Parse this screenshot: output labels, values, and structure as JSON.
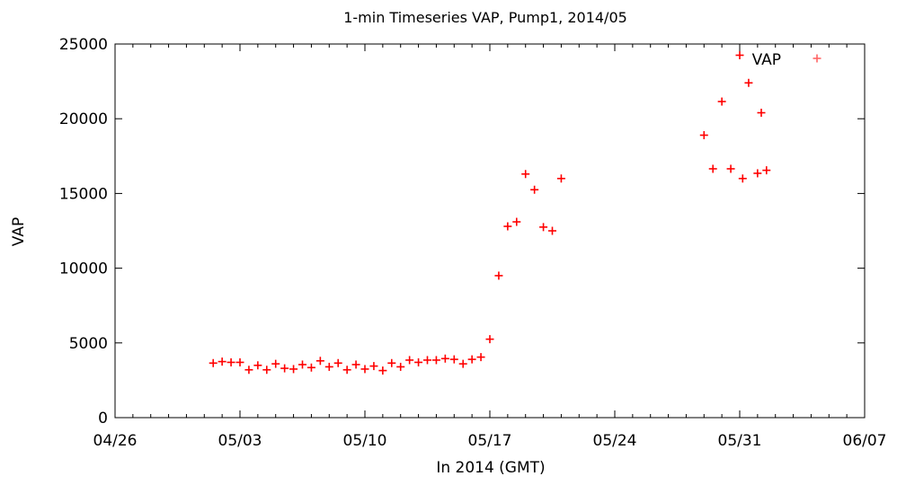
{
  "chart_data": {
    "type": "scatter",
    "title": "1-min Timeseries VAP, Pump1, 2014/05",
    "xlabel": "In 2014 (GMT)",
    "ylabel": "VAP",
    "xlim": [
      "2014-04-26",
      "2014-06-07"
    ],
    "ylim": [
      0,
      25000
    ],
    "x_ticks": [
      "04/26",
      "05/03",
      "05/10",
      "05/17",
      "05/24",
      "05/31",
      "06/07"
    ],
    "y_ticks": [
      "0",
      "5000",
      "10000",
      "15000",
      "20000",
      "25000"
    ],
    "grid": false,
    "legend": "top-right",
    "marker": "+",
    "series": [
      {
        "name": "VAP",
        "color": "#ff0000",
        "points": [
          [
            "2014-05-01T12:00",
            3650
          ],
          [
            "2014-05-02T00:00",
            3750
          ],
          [
            "2014-05-02T12:00",
            3700
          ],
          [
            "2014-05-03T00:00",
            3700
          ],
          [
            "2014-05-03T12:00",
            3200
          ],
          [
            "2014-05-04T00:00",
            3500
          ],
          [
            "2014-05-04T12:00",
            3200
          ],
          [
            "2014-05-05T00:00",
            3600
          ],
          [
            "2014-05-05T12:00",
            3300
          ],
          [
            "2014-05-06T00:00",
            3250
          ],
          [
            "2014-05-06T12:00",
            3550
          ],
          [
            "2014-05-07T00:00",
            3350
          ],
          [
            "2014-05-07T12:00",
            3800
          ],
          [
            "2014-05-08T00:00",
            3400
          ],
          [
            "2014-05-08T12:00",
            3650
          ],
          [
            "2014-05-09T00:00",
            3200
          ],
          [
            "2014-05-09T12:00",
            3550
          ],
          [
            "2014-05-10T00:00",
            3250
          ],
          [
            "2014-05-10T12:00",
            3450
          ],
          [
            "2014-05-11T00:00",
            3150
          ],
          [
            "2014-05-11T12:00",
            3650
          ],
          [
            "2014-05-12T00:00",
            3400
          ],
          [
            "2014-05-12T12:00",
            3850
          ],
          [
            "2014-05-13T00:00",
            3700
          ],
          [
            "2014-05-13T12:00",
            3850
          ],
          [
            "2014-05-14T00:00",
            3850
          ],
          [
            "2014-05-14T12:00",
            3950
          ],
          [
            "2014-05-15T00:00",
            3900
          ],
          [
            "2014-05-15T12:00",
            3600
          ],
          [
            "2014-05-16T00:00",
            3900
          ],
          [
            "2014-05-16T12:00",
            4050
          ],
          [
            "2014-05-17T00:00",
            5250
          ],
          [
            "2014-05-17T12:00",
            9500
          ],
          [
            "2014-05-18T00:00",
            12800
          ],
          [
            "2014-05-18T12:00",
            13100
          ],
          [
            "2014-05-19T00:00",
            16300
          ],
          [
            "2014-05-19T12:00",
            15250
          ],
          [
            "2014-05-20T00:00",
            12750
          ],
          [
            "2014-05-20T12:00",
            12500
          ],
          [
            "2014-05-21T00:00",
            16000
          ],
          [
            "2014-05-29T00:00",
            18900
          ],
          [
            "2014-05-29T12:00",
            16650
          ],
          [
            "2014-05-30T00:00",
            21150
          ],
          [
            "2014-05-30T12:00",
            16650
          ],
          [
            "2014-05-31T00:00",
            24250
          ],
          [
            "2014-05-31T04:00",
            16000
          ],
          [
            "2014-05-31T12:00",
            22400
          ],
          [
            "2014-06-01T00:00",
            16350
          ],
          [
            "2014-06-01T05:00",
            20400
          ],
          [
            "2014-06-01T12:00",
            16550
          ]
        ]
      }
    ]
  }
}
